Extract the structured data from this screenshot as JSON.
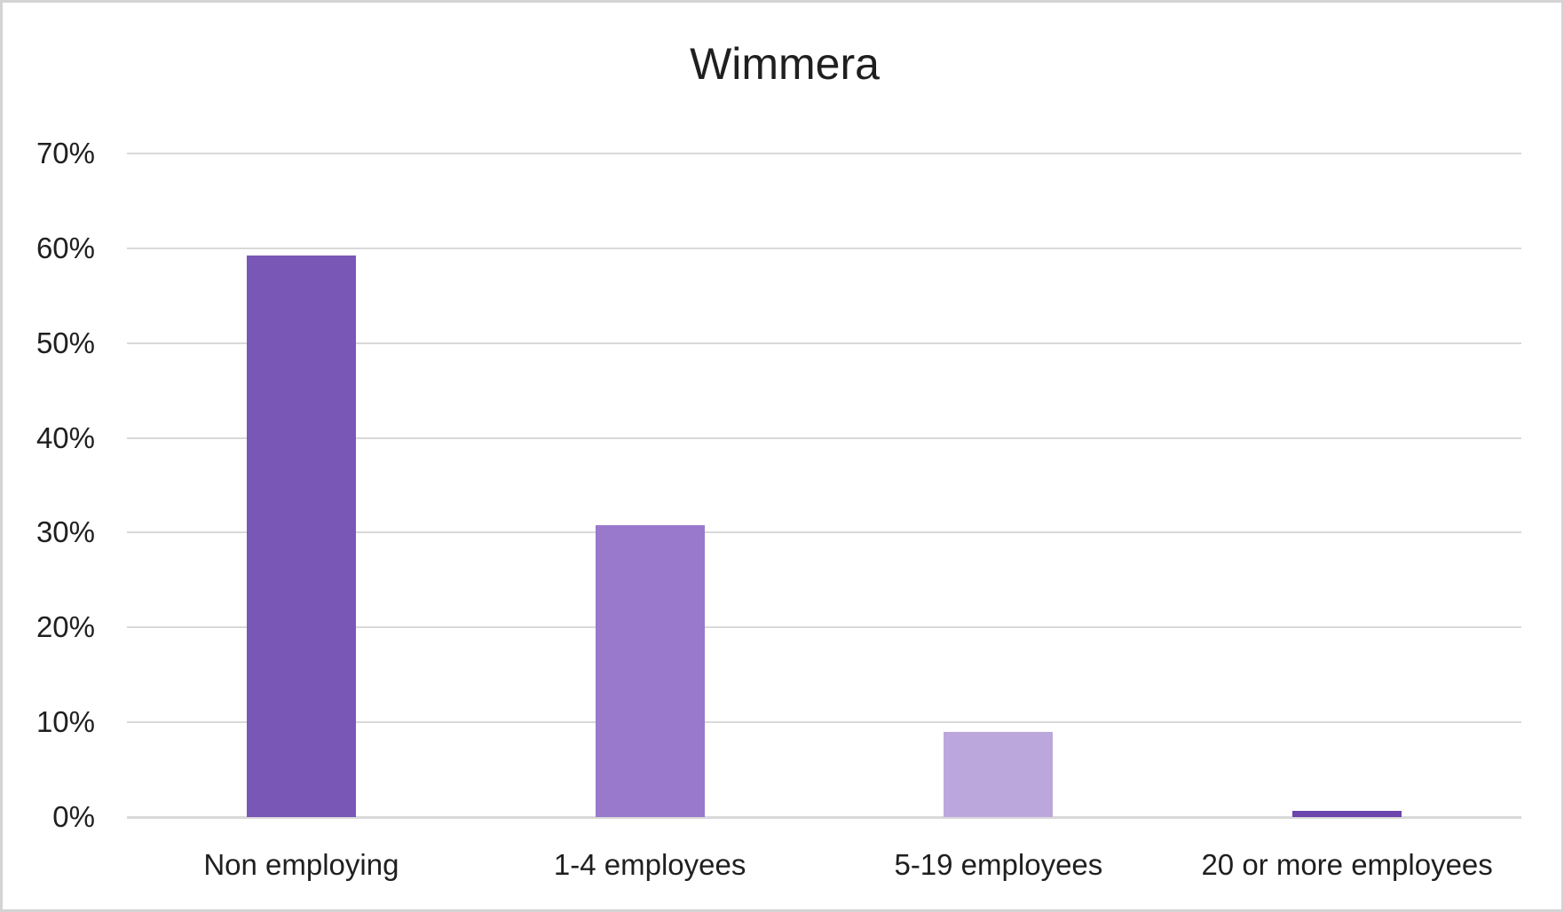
{
  "chart_data": {
    "type": "bar",
    "title": "Wimmera",
    "categories": [
      "Non employing",
      "1-4 employees",
      "5-19 employees",
      "20 or more employees"
    ],
    "values": [
      59.2,
      30.8,
      9.0,
      0.7
    ],
    "bar_colors": [
      "#7957B7",
      "#9879CB",
      "#BCA7DC",
      "#6C46AC"
    ],
    "xlabel": "",
    "ylabel": "",
    "ylim": [
      0,
      70
    ],
    "y_tick_values": [
      0,
      10,
      20,
      30,
      40,
      50,
      60,
      70
    ],
    "y_tick_labels": [
      "0%",
      "10%",
      "20%",
      "30%",
      "40%",
      "50%",
      "60%",
      "70%"
    ],
    "grid": true,
    "legend": "none",
    "gridline_color": "#D9D9D9",
    "axis_line_color": "#D9D9D9",
    "text_color": "#1f1f1f",
    "title_color": "#1f1f1f"
  }
}
